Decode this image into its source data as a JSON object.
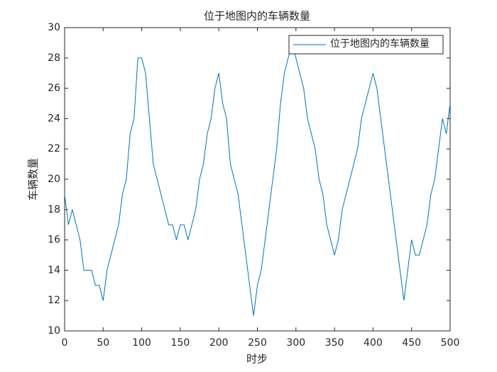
{
  "chart_data": {
    "type": "line",
    "title": "位于地图内的车辆数量",
    "x_label": "时步",
    "y_label": "车辆数量",
    "x": [
      0,
      5,
      10,
      15,
      20,
      25,
      30,
      35,
      40,
      45,
      50,
      55,
      60,
      65,
      70,
      75,
      80,
      85,
      90,
      95,
      100,
      105,
      110,
      115,
      120,
      125,
      130,
      135,
      140,
      145,
      150,
      155,
      160,
      165,
      170,
      175,
      180,
      185,
      190,
      195,
      200,
      205,
      210,
      215,
      220,
      225,
      230,
      235,
      240,
      245,
      250,
      255,
      260,
      265,
      270,
      275,
      280,
      285,
      290,
      295,
      300,
      305,
      310,
      315,
      320,
      325,
      330,
      335,
      340,
      345,
      350,
      355,
      360,
      365,
      370,
      375,
      380,
      385,
      390,
      395,
      400,
      405,
      410,
      415,
      420,
      425,
      430,
      435,
      440,
      445,
      450,
      455,
      460,
      465,
      470,
      475,
      480,
      485,
      490,
      495,
      500
    ],
    "series": [
      {
        "name": "位于地图内的车辆数量",
        "color": "#0072bd",
        "values": [
          19,
          17,
          18,
          17,
          16,
          14,
          14,
          14,
          13,
          13,
          12,
          14,
          15,
          16,
          17,
          19,
          20,
          23,
          24,
          28,
          28,
          27,
          24,
          21,
          20,
          19,
          18,
          17,
          17,
          16,
          17,
          17,
          16,
          17,
          18,
          20,
          21,
          23,
          24,
          26,
          27,
          25,
          24,
          21,
          20,
          19,
          17,
          15,
          13,
          11,
          13,
          14,
          16,
          18,
          20,
          22,
          25,
          27,
          28,
          29,
          28,
          27,
          26,
          24,
          23,
          22,
          20,
          19,
          17,
          16,
          15,
          16,
          18,
          19,
          20,
          21,
          22,
          24,
          25,
          26,
          27,
          26,
          24,
          22,
          20,
          18,
          16,
          14,
          12,
          14,
          16,
          15,
          15,
          16,
          17,
          19,
          20,
          22,
          24,
          23,
          25
        ]
      }
    ],
    "xlim": [
      0,
      500
    ],
    "xticks": [
      0,
      50,
      100,
      150,
      200,
      250,
      300,
      350,
      400,
      450,
      500
    ],
    "ylim": [
      10,
      30
    ],
    "yticks": [
      10,
      12,
      14,
      16,
      18,
      20,
      22,
      24,
      26,
      28,
      30
    ],
    "grid": false,
    "legend_position": "top-right"
  }
}
